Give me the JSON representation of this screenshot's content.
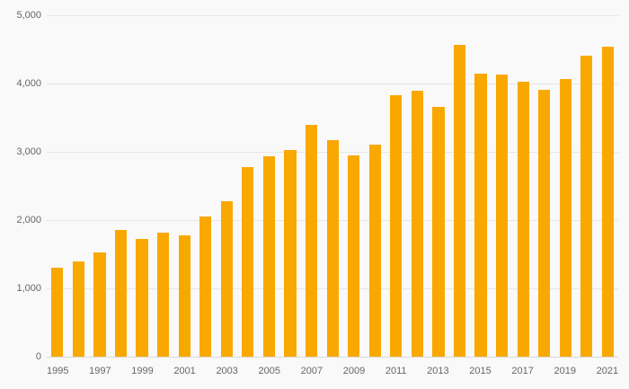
{
  "chart_data": {
    "type": "bar",
    "title": "",
    "xlabel": "",
    "ylabel": "",
    "categories": [
      "1995",
      "1996",
      "1997",
      "1998",
      "1999",
      "2000",
      "2001",
      "2002",
      "2003",
      "2004",
      "2005",
      "2006",
      "2007",
      "2008",
      "2009",
      "2010",
      "2011",
      "2012",
      "2013",
      "2014",
      "2015",
      "2016",
      "2017",
      "2018",
      "2019",
      "2020",
      "2021"
    ],
    "values": [
      1300,
      1390,
      1530,
      1850,
      1720,
      1820,
      1780,
      2050,
      2270,
      2780,
      2930,
      3030,
      3390,
      3170,
      2950,
      3110,
      3830,
      3890,
      3660,
      4570,
      4150,
      4130,
      4020,
      3910,
      4060,
      4410,
      4540
    ],
    "ylim": [
      0,
      5000
    ],
    "yticks": [
      0,
      1000,
      2000,
      3000,
      4000,
      5000
    ],
    "ytick_labels": [
      "0",
      "1,000",
      "2,000",
      "3,000",
      "4,000",
      "5,000"
    ],
    "xtick_labels": [
      "1995",
      "1997",
      "1999",
      "2001",
      "2003",
      "2005",
      "2007",
      "2009",
      "2011",
      "2013",
      "2015",
      "2017",
      "2019",
      "2021"
    ],
    "bar_color": "#F9A800",
    "background": "#f9f9f9",
    "grid": true,
    "legend": false,
    "legend_position": "none"
  }
}
